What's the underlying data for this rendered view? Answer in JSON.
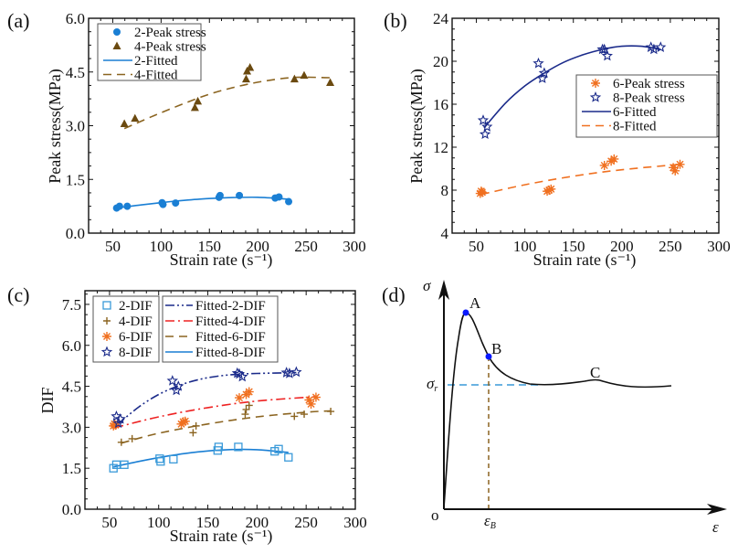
{
  "chart_data": [
    {
      "id": "a",
      "type": "scatter",
      "panel_label": "(a)",
      "xlabel": "Strain rate (s⁻¹)",
      "ylabel": "Peak stress(MPa)",
      "xlim": [
        25,
        300
      ],
      "ylim": [
        0,
        6.0
      ],
      "xticks": [
        50,
        100,
        150,
        200,
        250,
        300
      ],
      "yticks": [
        0.0,
        1.5,
        3.0,
        4.5,
        6.0
      ],
      "ytick_labels": [
        "0.0",
        "1.5",
        "3.0",
        "4.5",
        "6.0"
      ],
      "legend_position": "top-left",
      "series": [
        {
          "name": "2-Peak stress",
          "kind": "points",
          "marker": "circle",
          "color": "#1a7fd4",
          "x": [
            54,
            57,
            65,
            101,
            102,
            115,
            160,
            161,
            181,
            218,
            222,
            232
          ],
          "y": [
            0.7,
            0.75,
            0.75,
            0.85,
            0.8,
            0.84,
            1.0,
            1.05,
            1.05,
            0.98,
            1.01,
            0.88
          ]
        },
        {
          "name": "4-Peak stress",
          "kind": "points",
          "marker": "triangle",
          "color": "#6b4a10",
          "x": [
            62,
            73,
            135,
            138,
            188,
            189,
            192,
            238,
            248,
            275
          ],
          "y": [
            3.05,
            3.2,
            3.5,
            3.68,
            4.3,
            4.52,
            4.62,
            4.3,
            4.4,
            4.2
          ]
        },
        {
          "name": "2-Fitted",
          "kind": "line",
          "dash": "solid",
          "color": "#1a7fd4",
          "x": [
            54,
            80,
            110,
            140,
            170,
            200,
            232
          ],
          "y": [
            0.7,
            0.79,
            0.88,
            0.95,
            0.99,
            1.0,
            0.95
          ]
        },
        {
          "name": "4-Fitted",
          "kind": "line",
          "dash": "dash",
          "color": "#8b6420",
          "x": [
            62,
            90,
            120,
            150,
            180,
            210,
            240,
            275
          ],
          "y": [
            2.92,
            3.25,
            3.58,
            3.88,
            4.1,
            4.26,
            4.35,
            4.34
          ]
        }
      ]
    },
    {
      "id": "b",
      "type": "scatter",
      "panel_label": "(b)",
      "xlabel": "Strain rate (s⁻¹)",
      "ylabel": "Peak stress(MPa)",
      "xlim": [
        25,
        300
      ],
      "ylim": [
        4,
        24
      ],
      "xticks": [
        50,
        100,
        150,
        200,
        250,
        300
      ],
      "yticks": [
        4,
        8,
        12,
        16,
        20,
        24
      ],
      "ytick_labels": [
        "4",
        "8",
        "12",
        "16",
        "20",
        "24"
      ],
      "legend_position": "center-right",
      "series": [
        {
          "name": "6-Peak stress",
          "kind": "points",
          "marker": "asterisk",
          "color": "#f07020",
          "x": [
            54,
            55,
            56,
            123,
            125,
            127,
            182,
            189,
            192,
            253,
            255,
            260
          ],
          "y": [
            7.7,
            7.9,
            7.8,
            7.9,
            8.0,
            8.1,
            10.3,
            10.7,
            10.9,
            10.1,
            9.8,
            10.4
          ]
        },
        {
          "name": "8-Peak stress",
          "kind": "points",
          "marker": "star",
          "color": "#1a2a8a",
          "x": [
            57,
            59,
            61,
            114,
            118,
            120,
            180,
            182,
            185,
            230,
            233,
            240
          ],
          "y": [
            14.5,
            13.2,
            13.9,
            19.8,
            18.4,
            18.9,
            21.1,
            21.1,
            20.5,
            21.3,
            21.1,
            21.3
          ]
        },
        {
          "name": "6-Fitted",
          "kind": "line",
          "dash": "solid",
          "color": "#1a2a8a",
          "x": [
            58,
            80,
            100,
            120,
            140,
            160,
            180,
            200,
            220,
            240
          ],
          "y": [
            13.8,
            16.1,
            17.7,
            18.9,
            19.9,
            20.6,
            21.1,
            21.4,
            21.4,
            21.1
          ]
        },
        {
          "name": "8-Fitted",
          "kind": "line",
          "dash": "dash",
          "color": "#f07020",
          "x": [
            55,
            100,
            150,
            200,
            260
          ],
          "y": [
            7.6,
            8.5,
            9.3,
            9.9,
            10.4
          ]
        }
      ]
    },
    {
      "id": "c",
      "type": "scatter",
      "panel_label": "(c)",
      "xlabel": "Strain rate (s⁻¹)",
      "ylabel": "DIF",
      "xlim": [
        25,
        300
      ],
      "ylim": [
        0,
        8.0
      ],
      "xticks": [
        50,
        100,
        150,
        200,
        250,
        300
      ],
      "yticks": [
        0.0,
        1.5,
        3.0,
        4.5,
        6.0,
        7.5
      ],
      "ytick_labels": [
        "0.0",
        "1.5",
        "3.0",
        "4.5",
        "6.0",
        "7.5"
      ],
      "legend_position": "top-left",
      "series": [
        {
          "name": "2-DIF",
          "kind": "points",
          "marker": "square",
          "color": "#3a9ad9",
          "x": [
            54,
            57,
            65,
            101,
            102,
            115,
            160,
            161,
            181,
            218,
            222,
            232
          ],
          "y": [
            1.5,
            1.63,
            1.63,
            1.85,
            1.75,
            1.83,
            2.15,
            2.28,
            2.28,
            2.12,
            2.2,
            1.9
          ]
        },
        {
          "name": "4-DIF",
          "kind": "points",
          "marker": "plus",
          "color": "#8b6420",
          "x": [
            62,
            73,
            135,
            138,
            188,
            189,
            192,
            238,
            248,
            275
          ],
          "y": [
            2.45,
            2.58,
            2.8,
            3.05,
            3.48,
            3.65,
            3.8,
            3.4,
            3.48,
            3.58
          ]
        },
        {
          "name": "6-DIF",
          "kind": "points",
          "marker": "asterisk",
          "color": "#f07020",
          "x": [
            54,
            55,
            56,
            123,
            125,
            127,
            182,
            189,
            192,
            253,
            255,
            260
          ],
          "y": [
            3.05,
            3.12,
            3.08,
            3.12,
            3.2,
            3.22,
            4.08,
            4.2,
            4.3,
            4.0,
            3.85,
            4.1
          ]
        },
        {
          "name": "8-DIF",
          "kind": "points",
          "marker": "star",
          "color": "#1a2a8a",
          "x": [
            57,
            59,
            61,
            114,
            118,
            120,
            180,
            182,
            185,
            230,
            233,
            240
          ],
          "y": [
            3.4,
            3.15,
            3.3,
            4.7,
            4.35,
            4.5,
            4.98,
            4.95,
            4.85,
            5.0,
            4.97,
            5.02
          ]
        },
        {
          "name": "Fitted-2-DIF",
          "kind": "line",
          "dash": "dashdotdot",
          "color": "#1a2a8a",
          "x": [
            58,
            80,
            100,
            120,
            140,
            160,
            180,
            200,
            240
          ],
          "y": [
            3.1,
            3.75,
            4.2,
            4.52,
            4.74,
            4.87,
            4.94,
            4.97,
            5.0
          ]
        },
        {
          "name": "Fitted-4-DIF",
          "kind": "line",
          "dash": "dashdot",
          "color": "#ee2222",
          "x": [
            55,
            100,
            150,
            200,
            260
          ],
          "y": [
            2.98,
            3.38,
            3.72,
            3.96,
            4.12
          ]
        },
        {
          "name": "Fitted-6-DIF",
          "kind": "line",
          "dash": "dash",
          "color": "#8b6420",
          "x": [
            62,
            100,
            150,
            200,
            250,
            275
          ],
          "y": [
            2.42,
            2.78,
            3.12,
            3.38,
            3.55,
            3.6
          ]
        },
        {
          "name": "Fitted-8-DIF",
          "kind": "line",
          "dash": "solid",
          "color": "#1a7fd4",
          "x": [
            54,
            80,
            110,
            140,
            170,
            200,
            232
          ],
          "y": [
            1.55,
            1.75,
            1.95,
            2.1,
            2.18,
            2.18,
            2.08
          ]
        }
      ]
    }
  ],
  "diagram_d": {
    "panel_label": "(d)",
    "y_axis_label": "σ",
    "x_axis_label": "ε",
    "origin_label": "o",
    "point_A_label": "A",
    "point_B_label": "B",
    "point_C_label": "C",
    "sigma_r_label": "σ",
    "sigma_r_sub": "r",
    "epsilon_B_label": "ε",
    "epsilon_B_sub": "B",
    "curve_color": "#111111",
    "point_color": "#0a1aff",
    "sigma_r_line_color": "#3a9ad9",
    "epsilon_B_line_color": "#8b6420"
  }
}
